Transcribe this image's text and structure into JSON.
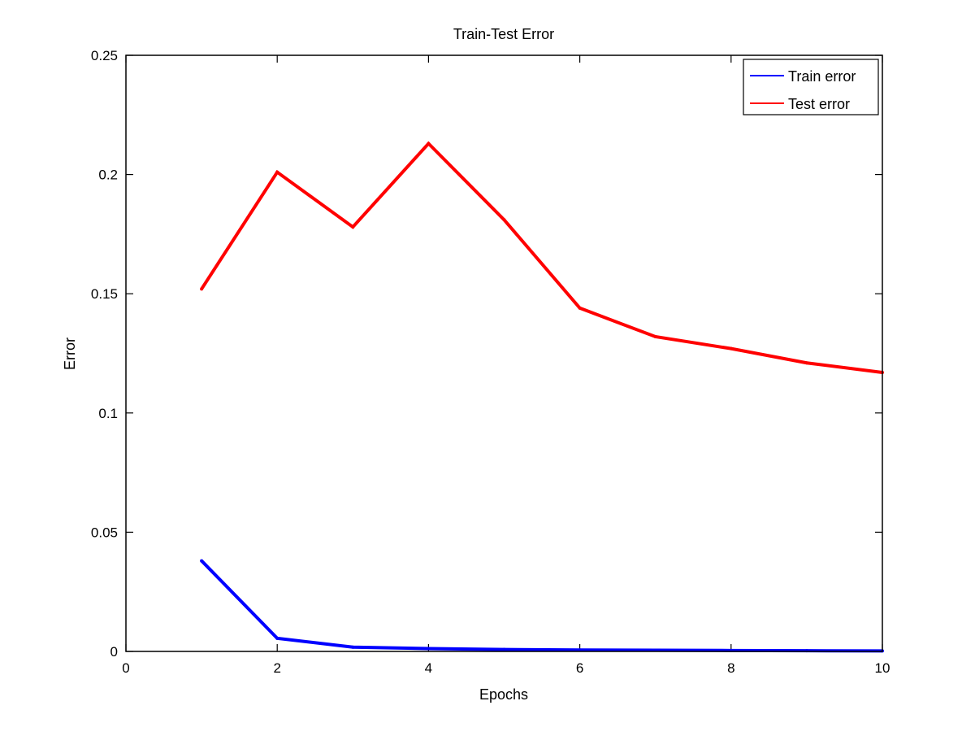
{
  "chart_data": {
    "type": "line",
    "title": "Train-Test Error",
    "xlabel": "Epochs",
    "ylabel": "Error",
    "xlim": [
      0,
      10
    ],
    "ylim": [
      0,
      0.25
    ],
    "xticks": [
      0,
      2,
      4,
      6,
      8,
      10
    ],
    "yticks": [
      0,
      0.05,
      0.1,
      0.15,
      0.2,
      0.25
    ],
    "xtick_labels": [
      "0",
      "2",
      "4",
      "6",
      "8",
      "10"
    ],
    "ytick_labels": [
      "0",
      "0.05",
      "0.1",
      "0.15",
      "0.2",
      "0.25"
    ],
    "grid": false,
    "legend_position": "top-right",
    "x": [
      1,
      2,
      3,
      4,
      5,
      6,
      7,
      8,
      9,
      10
    ],
    "series": [
      {
        "name": "Train error",
        "color": "#0000ff",
        "values": [
          0.038,
          0.0055,
          0.0018,
          0.0012,
          0.0008,
          0.0006,
          0.0005,
          0.0004,
          0.0003,
          0.0002
        ]
      },
      {
        "name": "Test error",
        "color": "#ff0000",
        "values": [
          0.152,
          0.201,
          0.178,
          0.213,
          0.181,
          0.144,
          0.132,
          0.127,
          0.121,
          0.117
        ]
      }
    ]
  }
}
